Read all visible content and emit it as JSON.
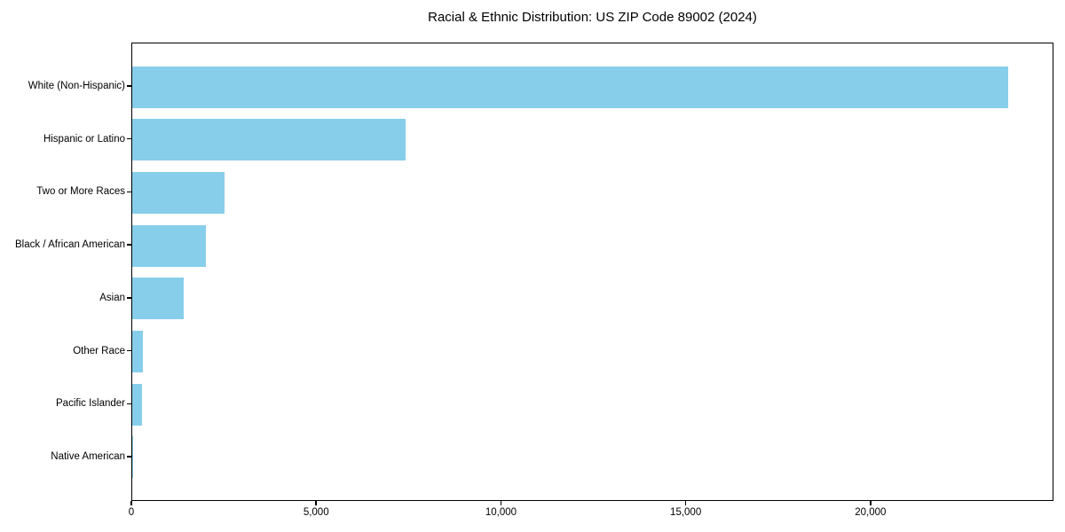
{
  "chart_data": {
    "type": "bar",
    "orientation": "horizontal",
    "title": "Racial & Ethnic Distribution: US ZIP Code 89002 (2024)",
    "xlabel": "",
    "ylabel": "",
    "categories": [
      "White (Non-Hispanic)",
      "Hispanic or Latino",
      "Two or More Races",
      "Black / African American",
      "Asian",
      "Other Race",
      "Pacific Islander",
      "Native American"
    ],
    "values": [
      23700,
      7400,
      2500,
      2000,
      1400,
      300,
      260,
      30
    ],
    "xlim": [
      0,
      24950
    ],
    "xticks": [
      0,
      5000,
      10000,
      15000,
      20000
    ],
    "xtick_labels": [
      "0",
      "5,000",
      "10,000",
      "15,000",
      "20,000"
    ],
    "bar_color": "#87CEEB",
    "axis_color": "#000000",
    "background_color": "#ffffff",
    "grid": false,
    "legend": null
  }
}
